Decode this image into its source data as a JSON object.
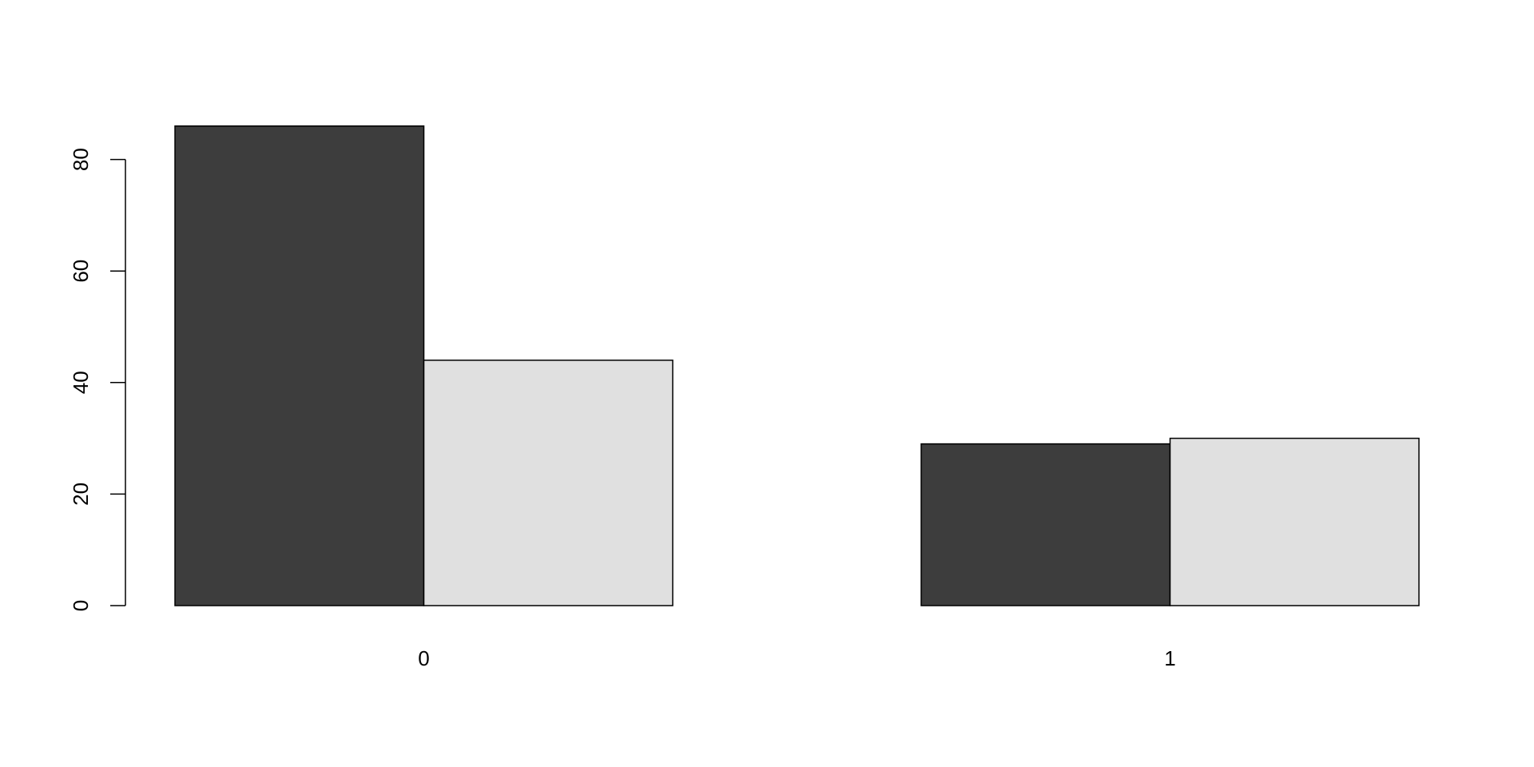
{
  "chart_data": {
    "type": "bar",
    "mode": "grouped",
    "title": "",
    "xlabel": "",
    "ylabel": "",
    "categories": [
      "0",
      "1"
    ],
    "series": [
      {
        "values": [
          86,
          29
        ],
        "color": "#3d3d3d"
      },
      {
        "values": [
          44,
          30
        ],
        "color": "#e0e0e0"
      }
    ],
    "yticks": [
      0,
      20,
      40,
      60,
      80
    ],
    "ytick_labels": [
      "0",
      "20",
      "40",
      "60",
      "80"
    ],
    "grid": false,
    "legend": "none"
  }
}
